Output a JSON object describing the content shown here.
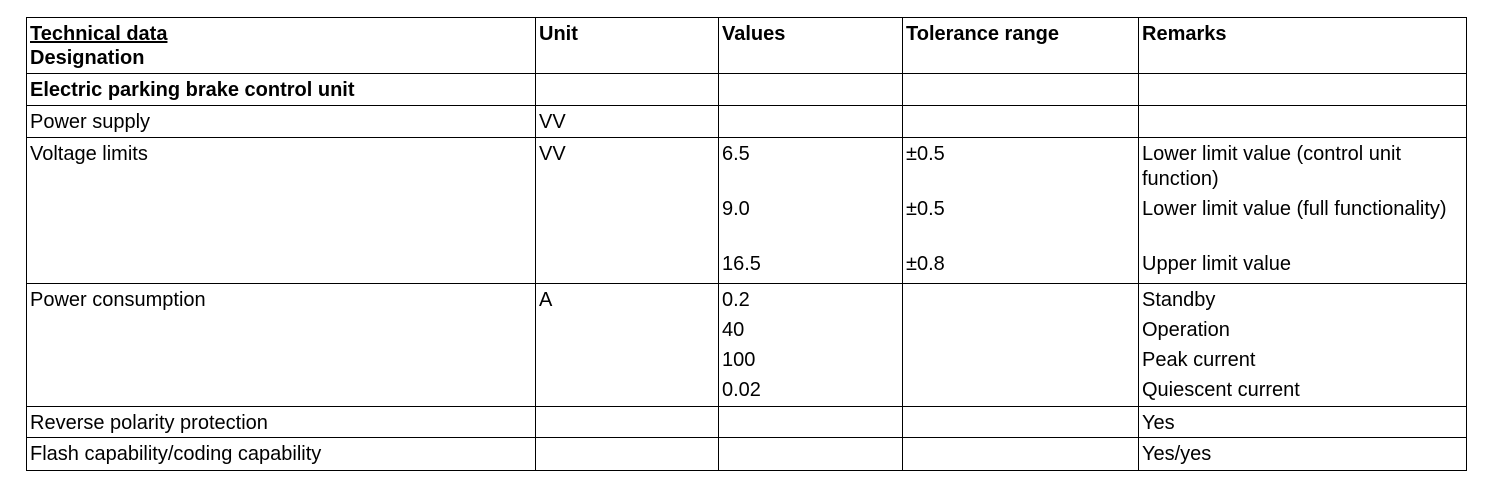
{
  "table": {
    "header_title": "Technical data",
    "header_designation": "Designation",
    "headers": [
      "Unit",
      "Values",
      "Tolerance range",
      "Remarks"
    ],
    "rows": [
      {
        "designation": "Electric parking brake control unit",
        "unit": "",
        "values": [],
        "tolerances": [],
        "remarks": []
      },
      {
        "designation": "Power supply",
        "unit": "VV",
        "values": [],
        "tolerances": [],
        "remarks": []
      },
      {
        "designation": "Voltage limits",
        "unit": "VV",
        "values": [
          "6.5",
          "9.0",
          "16.5"
        ],
        "tolerances": [
          "±0.5",
          "±0.5",
          "±0.8"
        ],
        "remarks": [
          "Lower limit value (control unit function)",
          "Lower limit value (full functionality)",
          "Upper limit value"
        ]
      },
      {
        "designation": "Power consumption",
        "unit": "A",
        "values": [
          "0.2",
          "40",
          "100",
          "0.02"
        ],
        "tolerances": [],
        "remarks": [
          "Standby",
          "Operation",
          "Peak current",
          "Quiescent current"
        ]
      },
      {
        "designation": "Reverse polarity protection",
        "unit": "",
        "values": [],
        "tolerances": [],
        "remarks": [
          "Yes"
        ]
      },
      {
        "designation": "Flash capability/coding capability",
        "unit": "",
        "values": [],
        "tolerances": [],
        "remarks": [
          "Yes/yes"
        ]
      }
    ]
  }
}
